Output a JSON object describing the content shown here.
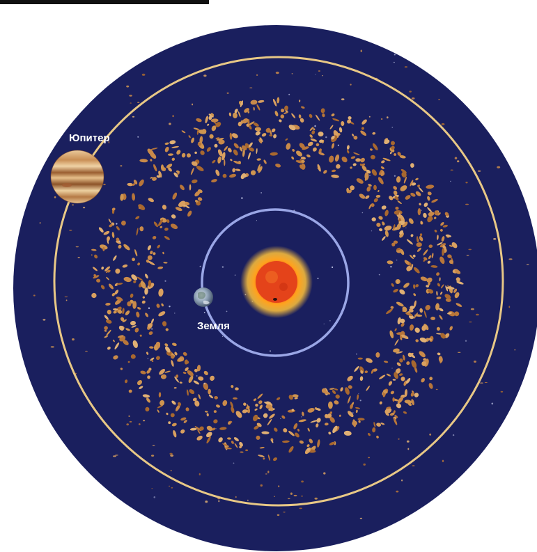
{
  "labels": {
    "jupiter": "Юпитер",
    "earth": "Земля"
  },
  "colors": {
    "space": "#1a1f5e",
    "jupiter_orbit": "#e8c886",
    "earth_orbit": "#9aa6e6",
    "asteroid": "#c98a4a",
    "sun_core": "#e8401a",
    "sun_glow": "#ffb020"
  },
  "icons": {
    "sun": "sun-icon",
    "earth": "earth-icon",
    "jupiter": "jupiter-icon"
  }
}
